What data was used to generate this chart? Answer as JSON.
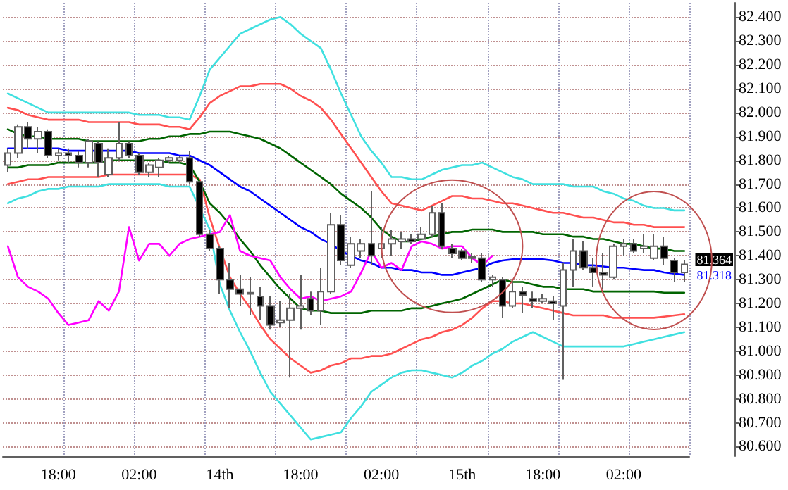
{
  "chart_data": {
    "type": "candlestick",
    "categories": [
      null,
      null,
      null,
      null,
      null,
      "18:00",
      null,
      null,
      null,
      null,
      null,
      null,
      null,
      "02:00",
      null,
      null,
      null,
      null,
      null,
      null,
      null,
      "14th",
      null,
      null,
      null,
      null,
      null,
      null,
      null,
      "18:00",
      null,
      null,
      null,
      null,
      null,
      null,
      null,
      "02:00",
      null,
      null,
      null,
      null,
      null,
      null,
      null,
      "15th",
      null,
      null,
      null,
      null,
      null,
      null,
      null,
      "18:00",
      null,
      null,
      null,
      null,
      null,
      null,
      null,
      "02:00",
      null,
      null,
      null,
      null,
      null,
      null
    ],
    "ylim": [
      80.56,
      82.46
    ],
    "yticks": [
      {
        "value": 80.6,
        "label": "80.600"
      },
      {
        "value": 80.7,
        "label": "80.700"
      },
      {
        "value": 80.8,
        "label": "80.800"
      },
      {
        "value": 80.9,
        "label": "80.900"
      },
      {
        "value": 81.0,
        "label": "81.000"
      },
      {
        "value": 81.1,
        "label": "81.100"
      },
      {
        "value": 81.2,
        "label": "81.200"
      },
      {
        "value": 81.3,
        "label": "81.300"
      },
      {
        "value": 81.4,
        "label": "81.400"
      },
      {
        "value": 81.5,
        "label": "81.500"
      },
      {
        "value": 81.6,
        "label": "81.600"
      },
      {
        "value": 81.7,
        "label": "81.700"
      },
      {
        "value": 81.8,
        "label": "81.800"
      },
      {
        "value": 81.9,
        "label": "81.900"
      },
      {
        "value": 82.0,
        "label": "82.000"
      },
      {
        "value": 82.1,
        "label": "82.100"
      },
      {
        "value": 82.2,
        "label": "82.200"
      },
      {
        "value": 82.3,
        "label": "82.300"
      },
      {
        "value": 82.4,
        "label": "82.400"
      }
    ],
    "grid": true,
    "marker": "none",
    "line_style": "solid",
    "annotations": [
      "81.364",
      "81.318"
    ],
    "series": [
      {
        "type": "line",
        "color": "#40e0e0",
        "values": [
          82.08,
          82.06,
          82.04,
          82.02,
          82.0,
          82.0,
          82.0,
          82.0,
          82.0,
          82.0,
          82.0,
          82.0,
          82.0,
          81.99,
          81.99,
          81.99,
          81.98,
          81.98,
          81.97,
          82.07,
          82.18,
          82.23,
          82.28,
          82.33,
          82.35,
          82.37,
          82.39,
          82.4,
          82.37,
          82.33,
          82.3,
          82.27,
          82.18,
          82.08,
          81.99,
          81.9,
          81.84,
          81.79,
          81.73,
          81.73,
          81.72,
          81.72,
          81.74,
          81.76,
          81.77,
          81.78,
          81.78,
          81.79,
          81.77,
          81.75,
          81.73,
          81.72,
          81.7,
          81.7,
          81.7,
          81.7,
          81.69,
          81.69,
          81.69,
          81.67,
          81.66,
          81.64,
          81.63,
          81.61,
          81.6,
          81.6,
          81.59,
          81.59
        ]
      },
      {
        "type": "line",
        "color": "#40e0e0",
        "values": [
          81.62,
          81.64,
          81.65,
          81.67,
          81.68,
          81.68,
          81.69,
          81.69,
          81.69,
          81.69,
          81.7,
          81.7,
          81.7,
          81.7,
          81.7,
          81.7,
          81.69,
          81.69,
          81.69,
          81.6,
          81.51,
          81.28,
          81.17,
          81.08,
          81.0,
          80.91,
          80.83,
          80.78,
          80.73,
          80.68,
          80.63,
          80.64,
          80.65,
          80.66,
          80.72,
          80.77,
          80.83,
          80.86,
          80.89,
          80.91,
          80.92,
          80.92,
          80.91,
          80.9,
          80.89,
          80.91,
          80.94,
          80.96,
          80.99,
          81.01,
          81.04,
          81.06,
          81.08,
          81.06,
          81.04,
          81.02,
          81.02,
          81.02,
          81.02,
          81.02,
          81.02,
          81.02,
          81.03,
          81.04,
          81.05,
          81.06,
          81.07,
          81.08
        ]
      },
      {
        "type": "line",
        "color": "#ff5050",
        "values": [
          82.02,
          82.01,
          81.99,
          81.98,
          81.97,
          81.97,
          81.97,
          81.97,
          81.96,
          81.96,
          81.96,
          81.96,
          81.96,
          81.95,
          81.95,
          81.95,
          81.94,
          81.94,
          81.93,
          81.98,
          82.04,
          82.07,
          82.09,
          82.11,
          82.11,
          82.12,
          82.12,
          82.12,
          82.1,
          82.07,
          82.05,
          82.02,
          81.97,
          81.91,
          81.85,
          81.79,
          81.73,
          81.67,
          81.62,
          81.61,
          81.6,
          81.59,
          81.61,
          81.63,
          81.65,
          81.65,
          81.64,
          81.64,
          81.63,
          81.62,
          81.62,
          81.61,
          81.6,
          81.59,
          81.58,
          81.58,
          81.57,
          81.56,
          81.56,
          81.55,
          81.54,
          81.54,
          81.53,
          81.53,
          81.52,
          81.52,
          81.52,
          81.52
        ]
      },
      {
        "type": "line",
        "color": "#ff5050",
        "values": [
          81.7,
          81.71,
          81.72,
          81.72,
          81.73,
          81.73,
          81.73,
          81.73,
          81.73,
          81.73,
          81.74,
          81.74,
          81.74,
          81.74,
          81.74,
          81.74,
          81.74,
          81.74,
          81.74,
          81.72,
          81.56,
          81.43,
          81.31,
          81.24,
          81.18,
          81.11,
          81.05,
          81.01,
          80.97,
          80.94,
          80.91,
          80.92,
          80.94,
          80.95,
          80.97,
          80.97,
          80.98,
          80.98,
          80.99,
          81.01,
          81.03,
          81.05,
          81.06,
          81.08,
          81.09,
          81.11,
          81.14,
          81.18,
          81.21,
          81.21,
          81.2,
          81.2,
          81.19,
          81.18,
          81.17,
          81.16,
          81.15,
          81.15,
          81.15,
          81.15,
          81.14,
          81.14,
          81.14,
          81.14,
          81.14,
          81.145,
          81.15,
          81.155
        ]
      },
      {
        "type": "line",
        "color": "#006400",
        "values": [
          81.93,
          81.91,
          81.9,
          81.9,
          81.89,
          81.89,
          81.89,
          81.89,
          81.88,
          81.88,
          81.88,
          81.88,
          81.88,
          81.88,
          81.89,
          81.89,
          81.9,
          81.9,
          81.91,
          81.91,
          81.92,
          81.92,
          81.92,
          81.91,
          81.9,
          81.89,
          81.87,
          81.85,
          81.82,
          81.79,
          81.76,
          81.73,
          81.7,
          81.66,
          81.63,
          81.6,
          81.56,
          81.51,
          81.48,
          81.46,
          81.46,
          81.47,
          81.48,
          81.49,
          81.5,
          81.5,
          81.51,
          81.51,
          81.51,
          81.5,
          81.5,
          81.5,
          81.5,
          81.49,
          81.49,
          81.49,
          81.48,
          81.48,
          81.47,
          81.47,
          81.46,
          81.45,
          81.45,
          81.44,
          81.43,
          81.43,
          81.42,
          81.42
        ]
      },
      {
        "type": "line",
        "color": "#006400",
        "values": [
          81.77,
          81.77,
          81.78,
          81.78,
          81.78,
          81.79,
          81.79,
          81.79,
          81.79,
          81.79,
          81.8,
          81.8,
          81.8,
          81.8,
          81.8,
          81.8,
          81.79,
          81.79,
          81.78,
          81.71,
          81.62,
          81.58,
          81.53,
          81.47,
          81.42,
          81.36,
          81.31,
          81.26,
          81.22,
          81.18,
          81.17,
          81.17,
          81.16,
          81.16,
          81.16,
          81.16,
          81.17,
          81.17,
          81.17,
          81.17,
          81.18,
          81.18,
          81.19,
          81.2,
          81.21,
          81.22,
          81.24,
          81.26,
          81.28,
          81.3,
          81.29,
          81.29,
          81.28,
          81.27,
          81.27,
          81.26,
          81.26,
          81.26,
          81.25,
          81.25,
          81.25,
          81.25,
          81.25,
          81.25,
          81.25,
          81.245,
          81.245,
          81.245
        ]
      },
      {
        "type": "line",
        "color": "#0000ff",
        "values": [
          81.85,
          81.85,
          81.85,
          81.85,
          81.85,
          81.85,
          81.84,
          81.84,
          81.84,
          81.84,
          81.84,
          81.84,
          81.84,
          81.83,
          81.83,
          81.83,
          81.83,
          81.82,
          81.82,
          81.8,
          81.78,
          81.75,
          81.72,
          81.69,
          81.67,
          81.64,
          81.61,
          81.58,
          81.55,
          81.52,
          81.5,
          81.47,
          81.45,
          81.42,
          81.4,
          81.38,
          81.37,
          81.35,
          81.35,
          81.34,
          81.34,
          81.33,
          81.33,
          81.32,
          81.32,
          81.33,
          81.34,
          81.35,
          81.37,
          81.38,
          81.385,
          81.385,
          81.385,
          81.385,
          81.38,
          81.37,
          81.37,
          81.36,
          81.36,
          81.355,
          81.35,
          81.35,
          81.345,
          81.34,
          81.34,
          81.33,
          81.325,
          81.32
        ]
      },
      {
        "type": "line",
        "color": "#ff00ff",
        "values": [
          81.44,
          81.31,
          81.27,
          81.25,
          81.22,
          81.16,
          81.11,
          81.12,
          81.13,
          81.21,
          81.17,
          81.25,
          81.52,
          81.38,
          81.45,
          81.45,
          81.4,
          81.45,
          81.47,
          81.48,
          81.49,
          81.5,
          81.57,
          81.42,
          81.4,
          81.39,
          81.38,
          81.31,
          81.26,
          81.22,
          81.23,
          81.21,
          81.22,
          81.23,
          81.25,
          81.33,
          81.42,
          81.35,
          81.37,
          81.34,
          81.44,
          81.46,
          81.45,
          81.43,
          81.44,
          81.44,
          81.39,
          81.36,
          81.4,
          null,
          null,
          null,
          null,
          null,
          null,
          null,
          null,
          null,
          null,
          null,
          null,
          null,
          null,
          null,
          null,
          null,
          null,
          null
        ]
      },
      {
        "colors": [
          "#ffffff",
          "#ffffff",
          "#000000",
          "#ffffff",
          "#000000",
          "#ffffff",
          "#000000",
          "#000000",
          "#ffffff",
          "#000000",
          "#ffffff",
          "#ffffff",
          "#000000",
          "#000000",
          "#ffffff",
          "#ffffff",
          "#ffffff",
          "#ffffff",
          "#000000",
          "#000000",
          "#000000",
          "#000000",
          "#000000",
          "#000000",
          "#000000",
          "#000000",
          "#000000",
          "#ffffff",
          "#ffffff",
          "#ffffff",
          "#000000",
          "#ffffff",
          "#ffffff",
          "#000000",
          "#ffffff",
          "#ffffff",
          "#000000",
          "#ffffff",
          "#ffffff",
          "#ffffff",
          "#000000",
          "#ffffff",
          "#ffffff",
          "#000000",
          "#000000",
          "#000000",
          "#000000",
          "#000000",
          "#ffffff",
          "#000000",
          "#ffffff",
          "#000000",
          "#000000",
          "#ffffff",
          "#000000",
          "#ffffff",
          "#ffffff",
          "#000000",
          "#000000",
          "#000000",
          "#ffffff",
          "#ffffff",
          "#000000",
          "#ffffff",
          "#ffffff",
          "#000000",
          "#000000",
          "#ffffff"
        ],
        "ohlc": [
          [
            81.78,
            81.85,
            81.75,
            81.83
          ],
          [
            81.83,
            81.95,
            81.81,
            81.94
          ],
          [
            81.94,
            81.96,
            81.85,
            81.89
          ],
          [
            81.89,
            81.94,
            81.83,
            81.92
          ],
          [
            81.92,
            81.93,
            81.81,
            81.82
          ],
          [
            81.82,
            81.85,
            81.8,
            81.83
          ],
          [
            81.83,
            81.85,
            81.79,
            81.82
          ],
          [
            81.82,
            81.84,
            81.77,
            81.79
          ],
          [
            81.79,
            81.89,
            81.77,
            81.88
          ],
          [
            81.87,
            81.88,
            81.73,
            81.79
          ],
          [
            81.74,
            81.85,
            81.73,
            81.81
          ],
          [
            81.81,
            81.96,
            81.8,
            81.87
          ],
          [
            81.87,
            81.88,
            81.81,
            81.82
          ],
          [
            81.82,
            81.83,
            81.74,
            81.75
          ],
          [
            81.75,
            81.79,
            81.73,
            81.78
          ],
          [
            81.77,
            81.81,
            81.73,
            81.8
          ],
          [
            81.8,
            81.82,
            81.79,
            81.81
          ],
          [
            81.8,
            81.82,
            81.79,
            81.81
          ],
          [
            81.81,
            81.84,
            81.7,
            81.71
          ],
          [
            81.71,
            81.71,
            81.48,
            81.49
          ],
          [
            81.49,
            81.51,
            81.42,
            81.43
          ],
          [
            81.43,
            81.44,
            81.24,
            81.3
          ],
          [
            81.3,
            81.37,
            81.18,
            81.26
          ],
          [
            81.26,
            81.32,
            81.19,
            81.24
          ],
          [
            81.245,
            81.31,
            81.15,
            81.24
          ],
          [
            81.23,
            81.27,
            81.13,
            81.19
          ],
          [
            81.19,
            81.23,
            81.09,
            81.11
          ],
          [
            81.12,
            81.21,
            81.1,
            81.13
          ],
          [
            81.13,
            81.24,
            80.89,
            81.18
          ],
          [
            81.18,
            81.32,
            81.09,
            81.19
          ],
          [
            81.22,
            81.25,
            81.15,
            81.17
          ],
          [
            81.17,
            81.35,
            81.11,
            81.25
          ],
          [
            81.25,
            81.58,
            81.24,
            81.53
          ],
          [
            81.53,
            81.57,
            81.36,
            81.38
          ],
          [
            81.36,
            81.48,
            81.35,
            81.45
          ],
          [
            81.42,
            81.47,
            81.39,
            81.45
          ],
          [
            81.45,
            81.67,
            81.36,
            81.4
          ],
          [
            81.43,
            81.52,
            81.39,
            81.45
          ],
          [
            81.45,
            81.51,
            81.4,
            81.47
          ],
          [
            81.46,
            81.5,
            81.43,
            81.47
          ],
          [
            81.47,
            81.49,
            81.45,
            81.46
          ],
          [
            81.47,
            81.52,
            81.47,
            81.49
          ],
          [
            81.49,
            81.61,
            81.48,
            81.58
          ],
          [
            81.58,
            81.62,
            81.43,
            81.44
          ],
          [
            81.43,
            81.45,
            81.39,
            81.41
          ],
          [
            81.42,
            81.43,
            81.38,
            81.39
          ],
          [
            81.395,
            81.41,
            81.37,
            81.39
          ],
          [
            81.39,
            81.41,
            81.29,
            81.3
          ],
          [
            81.3,
            81.32,
            81.27,
            81.31
          ],
          [
            81.3,
            81.31,
            81.14,
            81.19
          ],
          [
            81.19,
            81.29,
            81.18,
            81.25
          ],
          [
            81.25,
            81.27,
            81.16,
            81.235
          ],
          [
            81.22,
            81.25,
            81.18,
            81.21
          ],
          [
            81.21,
            81.24,
            81.2,
            81.22
          ],
          [
            81.21,
            81.23,
            81.13,
            81.2
          ],
          [
            81.19,
            81.37,
            80.88,
            81.34
          ],
          [
            81.34,
            81.47,
            81.27,
            81.42
          ],
          [
            81.42,
            81.46,
            81.34,
            81.35
          ],
          [
            81.35,
            81.39,
            81.27,
            81.33
          ],
          [
            81.33,
            81.41,
            81.26,
            81.32
          ],
          [
            81.31,
            81.45,
            81.3,
            81.44
          ],
          [
            81.44,
            81.47,
            81.4,
            81.45
          ],
          [
            81.45,
            81.47,
            81.41,
            81.42
          ],
          [
            81.43,
            81.49,
            81.41,
            81.44
          ],
          [
            81.39,
            81.49,
            81.38,
            81.44
          ],
          [
            81.44,
            81.48,
            81.36,
            81.39
          ],
          [
            81.38,
            81.39,
            81.29,
            81.33
          ],
          [
            81.33,
            81.38,
            81.29,
            81.364
          ]
        ]
      }
    ]
  }
}
